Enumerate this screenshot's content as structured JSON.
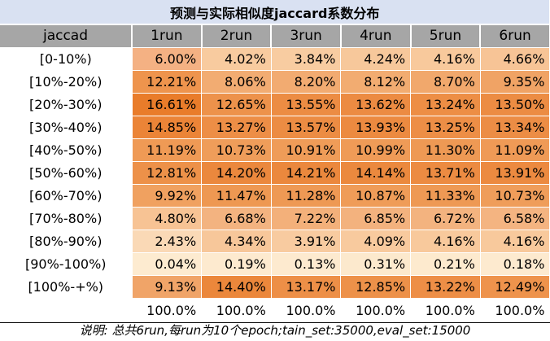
{
  "title": "预测与实际相似度jaccard系数分布",
  "header": {
    "first": "jaccad",
    "runs": [
      "1run",
      "2run",
      "3run",
      "4run",
      "5run",
      "6run"
    ]
  },
  "rows": [
    {
      "range": "[0-10%)",
      "values": [
        "6.00%",
        "4.02%",
        "3.84%",
        "4.24%",
        "4.16%",
        "4.66%"
      ],
      "fills": [
        "#f4b183",
        "#f8cb9f",
        "#f8cca1",
        "#f7c89b",
        "#f8c99c",
        "#f7c496"
      ]
    },
    {
      "range": "[10%-20%)",
      "values": [
        "12.21%",
        "8.06%",
        "8.20%",
        "8.12%",
        "8.70%",
        "9.35%"
      ],
      "fills": [
        "#ee944d",
        "#f2ac72",
        "#f2ab71",
        "#f2ac71",
        "#f1a86c",
        "#f0a365"
      ]
    },
    {
      "range": "[20%-30%)",
      "values": [
        "16.61%",
        "12.65%",
        "13.55%",
        "13.62%",
        "13.24%",
        "13.50%"
      ],
      "fills": [
        "#e97c2a",
        "#ed924b",
        "#ec8c43",
        "#ec8b42",
        "#ed8e45",
        "#ec8c43"
      ]
    },
    {
      "range": "[30%-40%)",
      "values": [
        "14.85%",
        "13.27%",
        "13.57%",
        "13.93%",
        "13.25%",
        "13.34%"
      ],
      "fills": [
        "#eb8437",
        "#ed8e46",
        "#ec8c43",
        "#ec8a40",
        "#ed8e46",
        "#ec8d45"
      ]
    },
    {
      "range": "[40%-50%)",
      "values": [
        "11.19%",
        "10.73%",
        "10.91%",
        "10.99%",
        "11.30%",
        "11.09%"
      ],
      "fills": [
        "#ef9a55",
        "#ef9d5a",
        "#ef9c58",
        "#ef9b57",
        "#ee9954",
        "#ef9a56"
      ]
    },
    {
      "range": "[50%-60%)",
      "values": [
        "12.81%",
        "14.20%",
        "14.21%",
        "14.14%",
        "13.71%",
        "13.91%"
      ],
      "fills": [
        "#ed9149",
        "#eb883d",
        "#eb883d",
        "#eb893e",
        "#ec8b42",
        "#ec8a40"
      ]
    },
    {
      "range": "[60%-70%)",
      "values": [
        "9.92%",
        "11.47%",
        "11.28%",
        "10.87%",
        "11.33%",
        "10.73%"
      ],
      "fills": [
        "#f0a160",
        "#ee9852",
        "#ee9954",
        "#ef9c58",
        "#ee9954",
        "#ef9d5a"
      ]
    },
    {
      "range": "[70%-80%)",
      "values": [
        "4.80%",
        "6.68%",
        "7.22%",
        "6.85%",
        "6.72%",
        "6.58%"
      ],
      "fills": [
        "#f7c394",
        "#f3b380",
        "#f3b07a",
        "#f3b27e",
        "#f3b37f",
        "#f4b481"
      ]
    },
    {
      "range": "[80%-90%)",
      "values": [
        "2.43%",
        "4.34%",
        "3.91%",
        "4.09%",
        "4.16%",
        "4.16%"
      ],
      "fills": [
        "#fad9b6",
        "#f7c79a",
        "#f8cba0",
        "#f8ca9e",
        "#f8c99c",
        "#f8c99c"
      ]
    },
    {
      "range": "[90%-100%)",
      "values": [
        "0.04%",
        "0.19%",
        "0.13%",
        "0.31%",
        "0.21%",
        "0.18%"
      ],
      "fills": [
        "#fdebd0",
        "#fdeacf",
        "#fdeacf",
        "#fce9cd",
        "#fdeace",
        "#fdeacf"
      ]
    },
    {
      "range": "[100%-+%)",
      "values": [
        "9.13%",
        "14.40%",
        "13.17%",
        "12.85%",
        "13.22%",
        "12.49%"
      ],
      "fills": [
        "#f0a468",
        "#eb873b",
        "#ed8f47",
        "#ed9149",
        "#ed8e46",
        "#ee934c"
      ]
    }
  ],
  "totals": [
    "100.0%",
    "100.0%",
    "100.0%",
    "100.0%",
    "100.0%",
    "100.0%"
  ],
  "note": "说明:  总共6run,每run为10个epoch;tain_set:35000,eval_set:15000"
}
